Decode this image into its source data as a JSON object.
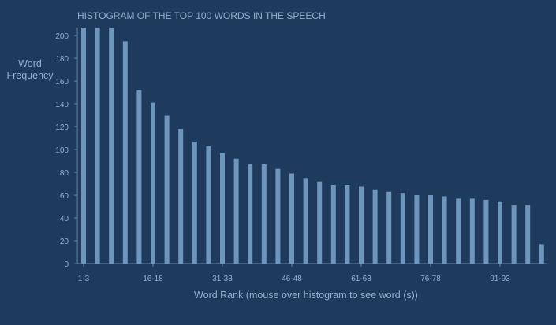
{
  "colors": {
    "background": "#1e3a5c",
    "bar": "#6e96bd",
    "axis": "#5f86ad",
    "text": "#8fb0d0"
  },
  "chart_data": {
    "type": "bar",
    "title": "HISTOGRAM OF THE TOP 100 WORDS IN THE SPEECH",
    "xlabel": "Word Rank (mouse over histogram to see word (s))",
    "ylabel": [
      "Word",
      "Frequency"
    ],
    "ylim": [
      0,
      207
    ],
    "yticks": [
      0,
      20,
      40,
      60,
      80,
      100,
      120,
      140,
      160,
      180,
      200
    ],
    "grid": false,
    "categories": [
      "1-3",
      "4-6",
      "7-9",
      "10-12",
      "13-15",
      "16-18",
      "19-21",
      "22-24",
      "25-27",
      "28-30",
      "31-33",
      "34-36",
      "37-39",
      "40-42",
      "43-45",
      "46-48",
      "49-51",
      "52-54",
      "55-57",
      "58-60",
      "61-63",
      "64-66",
      "67-69",
      "70-72",
      "73-75",
      "76-78",
      "79-81",
      "82-84",
      "85-87",
      "88-90",
      "91-93",
      "94-96",
      "97-99",
      "100"
    ],
    "xtick_labels": [
      "1-3",
      "16-18",
      "31-33",
      "46-48",
      "61-63",
      "76-78",
      "91-93"
    ],
    "values": [
      207,
      207,
      207,
      195,
      152,
      141,
      130,
      118,
      107,
      103,
      97,
      92,
      87,
      87,
      83,
      79,
      75,
      72,
      69,
      69,
      68,
      65,
      63,
      62,
      60,
      60,
      59,
      57,
      57,
      56,
      54,
      51,
      51,
      17
    ]
  }
}
